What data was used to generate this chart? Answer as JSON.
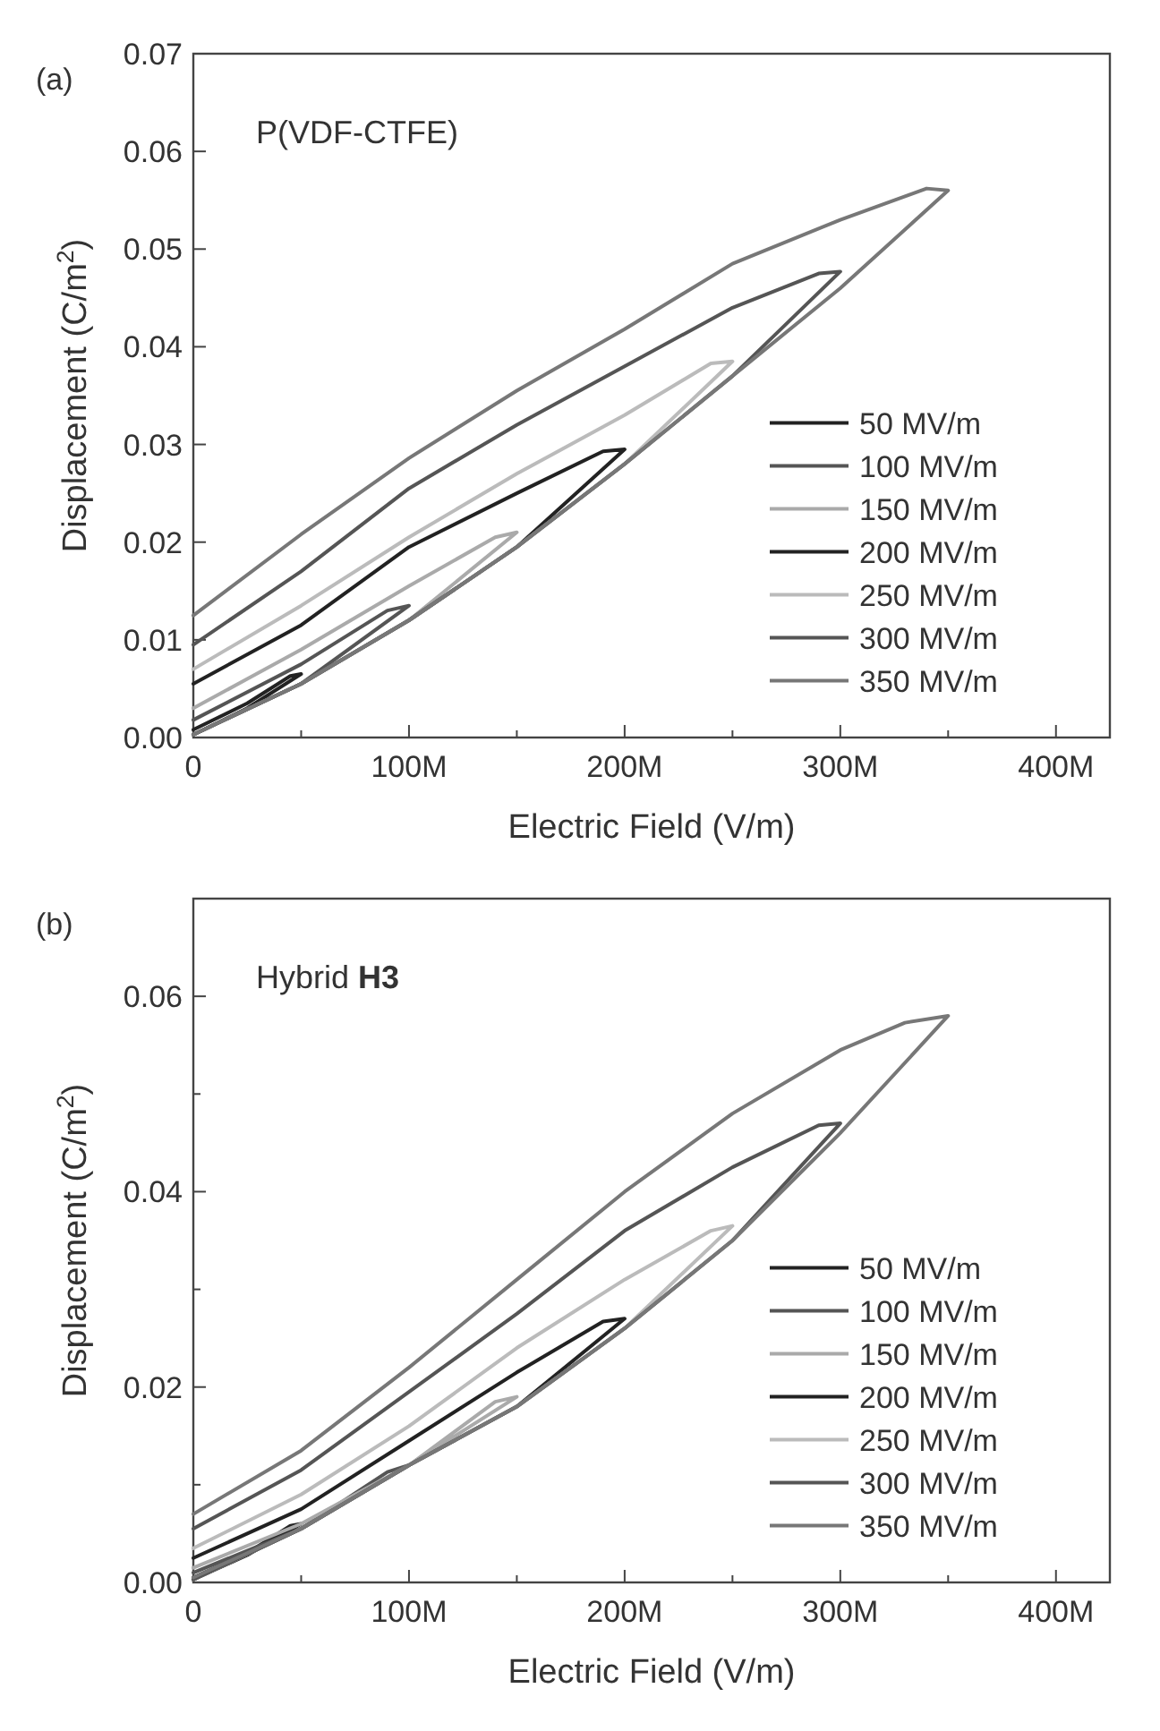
{
  "chart_data": [
    {
      "type": "line",
      "annotations": [
        "(a)",
        "P(VDF-CTFE)"
      ],
      "xlabel": "Electric Field (V/m)",
      "ylabel": "Displacement (C/m$^{2}$)",
      "xlim": [
        0,
        425000000
      ],
      "ylim": [
        0,
        0.07
      ],
      "xticks": [
        0,
        {
          "value": 50000000,
          "label": null
        },
        {
          "value": 100000000,
          "label": "100M"
        },
        {
          "value": 150000000,
          "label": null
        },
        {
          "value": 200000000,
          "label": "200M"
        },
        {
          "value": 250000000,
          "label": null
        },
        {
          "value": 300000000,
          "label": "300M"
        },
        {
          "value": 350000000,
          "label": null
        },
        {
          "value": 400000000,
          "label": "400M"
        }
      ],
      "yticks": [
        {
          "value": 0,
          "label": "0.00"
        },
        0.01,
        0.02,
        0.03,
        0.04,
        0.05,
        0.06,
        0.07
      ],
      "legend": "right",
      "grid": false,
      "marker": "none",
      "line_style": "solid",
      "series": [
        {
          "name": "50 MV/m",
          "color": "#222222",
          "x": [
            0,
            25000000,
            50000000,
            45000000,
            25000000,
            0
          ],
          "values": [
            0.0003,
            0.003,
            0.0065,
            0.0063,
            0.0035,
            0.0008
          ]
        },
        {
          "name": "100 MV/m",
          "color": "#555555",
          "x": [
            0,
            50000000,
            100000000,
            90000000,
            50000000,
            0
          ],
          "values": [
            0.0003,
            0.0055,
            0.0135,
            0.013,
            0.0075,
            0.0018
          ]
        },
        {
          "name": "150 MV/m",
          "color": "#aaaaaa",
          "x": [
            0,
            50000000,
            100000000,
            150000000,
            140000000,
            100000000,
            50000000,
            0
          ],
          "values": [
            0.0003,
            0.0055,
            0.012,
            0.021,
            0.0205,
            0.0155,
            0.009,
            0.003
          ]
        },
        {
          "name": "200 MV/m",
          "color": "#222222",
          "x": [
            0,
            50000000,
            100000000,
            150000000,
            200000000,
            190000000,
            150000000,
            100000000,
            50000000,
            0
          ],
          "values": [
            0.0003,
            0.0055,
            0.012,
            0.0195,
            0.0295,
            0.0293,
            0.025,
            0.0195,
            0.0115,
            0.0055
          ]
        },
        {
          "name": "250 MV/m",
          "color": "#bbbbbb",
          "x": [
            0,
            50000000,
            100000000,
            150000000,
            200000000,
            250000000,
            240000000,
            200000000,
            150000000,
            100000000,
            50000000,
            0
          ],
          "values": [
            0.0003,
            0.0055,
            0.012,
            0.0195,
            0.028,
            0.0385,
            0.0383,
            0.033,
            0.027,
            0.0205,
            0.0135,
            0.007
          ]
        },
        {
          "name": "300 MV/m",
          "color": "#555555",
          "x": [
            0,
            50000000,
            100000000,
            150000000,
            200000000,
            250000000,
            300000000,
            290000000,
            250000000,
            200000000,
            150000000,
            100000000,
            50000000,
            0
          ],
          "values": [
            0.0003,
            0.0055,
            0.012,
            0.0195,
            0.028,
            0.037,
            0.0477,
            0.0475,
            0.044,
            0.038,
            0.032,
            0.0255,
            0.017,
            0.0095
          ]
        },
        {
          "name": "350 MV/m",
          "color": "#777777",
          "x": [
            0,
            50000000,
            100000000,
            150000000,
            200000000,
            250000000,
            300000000,
            350000000,
            340000000,
            300000000,
            250000000,
            200000000,
            150000000,
            100000000,
            50000000,
            0
          ],
          "values": [
            0.0003,
            0.0055,
            0.012,
            0.0195,
            0.028,
            0.037,
            0.046,
            0.056,
            0.0562,
            0.053,
            0.0485,
            0.0418,
            0.0355,
            0.0286,
            0.0208,
            0.0125
          ]
        }
      ]
    },
    {
      "type": "line",
      "annotations": [
        "(b)",
        "Hybrid $^{}$H3"
      ],
      "xlabel": "Electric Field (V/m)",
      "ylabel": "Displacement (C/m$^{2}$)",
      "xlim": [
        0,
        425000000
      ],
      "ylim": [
        0,
        0.07
      ],
      "xticks": [
        0,
        {
          "value": 50000000,
          "label": null
        },
        {
          "value": 100000000,
          "label": "100M"
        },
        {
          "value": 150000000,
          "label": null
        },
        {
          "value": 200000000,
          "label": "200M"
        },
        {
          "value": 250000000,
          "label": null
        },
        {
          "value": 300000000,
          "label": "300M"
        },
        {
          "value": 350000000,
          "label": null
        },
        {
          "value": 400000000,
          "label": "400M"
        }
      ],
      "yticks": [
        {
          "value": 0,
          "label": "0.00"
        },
        {
          "value": 0.01,
          "label": null
        },
        {
          "value": 0.02,
          "label": "0.02"
        },
        {
          "value": 0.03,
          "label": null
        },
        {
          "value": 0.04,
          "label": "0.04"
        },
        {
          "value": 0.05,
          "label": null
        },
        {
          "value": 0.06,
          "label": "0.06"
        }
      ],
      "legend": "right",
      "grid": false,
      "marker": "none",
      "line_style": "solid",
      "series": [
        {
          "name": "50 MV/m",
          "color": "#222222",
          "x": [
            0,
            25000000,
            50000000,
            45000000,
            25000000,
            0
          ],
          "values": [
            0.0003,
            0.0028,
            0.006,
            0.0058,
            0.003,
            0.0005
          ]
        },
        {
          "name": "100 MV/m",
          "color": "#555555",
          "x": [
            0,
            50000000,
            100000000,
            90000000,
            50000000,
            0
          ],
          "values": [
            0.0003,
            0.0055,
            0.012,
            0.0113,
            0.0055,
            0.001
          ]
        },
        {
          "name": "150 MV/m",
          "color": "#aaaaaa",
          "x": [
            0,
            50000000,
            100000000,
            150000000,
            140000000,
            100000000,
            50000000,
            0
          ],
          "values": [
            0.0003,
            0.0055,
            0.012,
            0.019,
            0.0185,
            0.012,
            0.006,
            0.0015
          ]
        },
        {
          "name": "200 MV/m",
          "color": "#222222",
          "x": [
            0,
            50000000,
            100000000,
            150000000,
            200000000,
            190000000,
            150000000,
            100000000,
            50000000,
            0
          ],
          "values": [
            0.0003,
            0.0055,
            0.012,
            0.018,
            0.027,
            0.0267,
            0.0215,
            0.0145,
            0.0075,
            0.0025
          ]
        },
        {
          "name": "250 MV/m",
          "color": "#bbbbbb",
          "x": [
            0,
            50000000,
            100000000,
            150000000,
            200000000,
            250000000,
            240000000,
            200000000,
            150000000,
            100000000,
            50000000,
            0
          ],
          "values": [
            0.0003,
            0.0055,
            0.012,
            0.018,
            0.026,
            0.0365,
            0.036,
            0.031,
            0.024,
            0.016,
            0.009,
            0.0035
          ]
        },
        {
          "name": "300 MV/m",
          "color": "#555555",
          "x": [
            0,
            50000000,
            100000000,
            150000000,
            200000000,
            250000000,
            300000000,
            290000000,
            250000000,
            200000000,
            150000000,
            100000000,
            50000000,
            0
          ],
          "values": [
            0.0003,
            0.0055,
            0.012,
            0.018,
            0.026,
            0.035,
            0.047,
            0.0468,
            0.0425,
            0.036,
            0.0275,
            0.0195,
            0.0115,
            0.0055
          ]
        },
        {
          "name": "350 MV/m",
          "color": "#777777",
          "x": [
            0,
            50000000,
            100000000,
            150000000,
            200000000,
            250000000,
            300000000,
            350000000,
            330000000,
            300000000,
            250000000,
            200000000,
            150000000,
            100000000,
            50000000,
            0
          ],
          "values": [
            0.0005,
            0.0055,
            0.012,
            0.018,
            0.026,
            0.035,
            0.046,
            0.058,
            0.0573,
            0.0545,
            0.048,
            0.04,
            0.031,
            0.022,
            0.0135,
            0.007
          ]
        }
      ]
    }
  ]
}
